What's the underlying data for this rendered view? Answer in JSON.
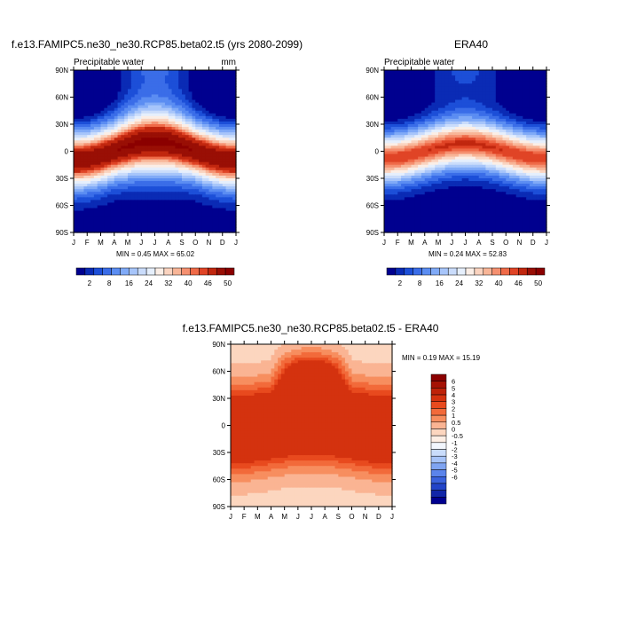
{
  "chart_data": [
    {
      "type": "heatmap",
      "title": "f.e13.FAMIPC5.ne30_ne30.RCP85.beta02.t5 (yrs 2080-2099)",
      "subtitle": "Precipitable water",
      "units": "mm",
      "x_ticks": [
        "J",
        "F",
        "M",
        "A",
        "M",
        "J",
        "J",
        "A",
        "S",
        "O",
        "N",
        "D",
        "J"
      ],
      "y_ticks": [
        "90N",
        "60N",
        "30N",
        "0",
        "30S",
        "60S",
        "90S"
      ],
      "min_max": "MIN =   0.45 MAX =  65.02",
      "colorbar": {
        "labels": [
          "2",
          "8",
          "16",
          "24",
          "32",
          "40",
          "46",
          "50"
        ],
        "colors": [
          "#00008f",
          "#0a2bb5",
          "#1c4fd8",
          "#3a6de8",
          "#5b8df2",
          "#80aaf7",
          "#a7c5fa",
          "#cadcfb",
          "#e6effc",
          "#fbeee6",
          "#fad3bf",
          "#f8b597",
          "#f59070",
          "#ef6a48",
          "#e04426",
          "#c1270f",
          "#990f05",
          "#8b0000"
        ]
      }
    },
    {
      "type": "heatmap",
      "title": "ERA40",
      "subtitle": "Precipitable water",
      "min_max": "MIN =   0.24 MAX =  52.83",
      "x_ticks": [
        "J",
        "F",
        "M",
        "A",
        "M",
        "J",
        "J",
        "A",
        "S",
        "O",
        "N",
        "D",
        "J"
      ],
      "y_ticks": [
        "90N",
        "60N",
        "30N",
        "0",
        "30S",
        "60S",
        "90S"
      ],
      "colorbar": {
        "labels": [
          "2",
          "8",
          "16",
          "24",
          "32",
          "40",
          "46",
          "50"
        ]
      }
    },
    {
      "type": "heatmap",
      "title": "f.e13.FAMIPC5.ne30_ne30.RCP85.beta02.t5 - ERA40",
      "min_max": "MIN =   0.19 MAX =  15.19",
      "x_ticks": [
        "J",
        "F",
        "M",
        "A",
        "M",
        "J",
        "J",
        "A",
        "S",
        "O",
        "N",
        "D",
        "J"
      ],
      "y_ticks": [
        "90N",
        "60N",
        "30N",
        "0",
        "30S",
        "60S",
        "90S"
      ],
      "colorbar": {
        "labels": [
          "6",
          "5",
          "4",
          "3",
          "2",
          "1",
          "0.5",
          "0",
          "-0.5",
          "-1",
          "-2",
          "-3",
          "-4",
          "-5",
          "-6"
        ],
        "colors": [
          "#8b0000",
          "#a51204",
          "#be2209",
          "#d4320f",
          "#e84a1e",
          "#f26a3a",
          "#f78e5f",
          "#fab493",
          "#fcd6bf",
          "#fdeee4",
          "#f2f6fd",
          "#c9dcfb",
          "#a6c3f8",
          "#7fa4f2",
          "#5b84eb",
          "#3a62dd",
          "#2244c8",
          "#1126a8",
          "#00008f"
        ]
      }
    }
  ]
}
